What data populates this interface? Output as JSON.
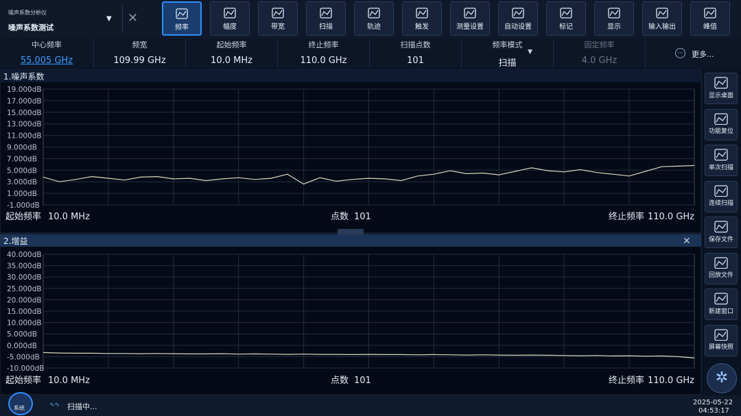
{
  "header": {
    "app": "噪声系数分析仪",
    "mode": "噪声系数测试"
  },
  "toolbar": {
    "active_index": 0,
    "items": [
      "频率",
      "幅度",
      "带宽",
      "扫描",
      "轨迹",
      "触发",
      "测量设置",
      "自动设置",
      "标记",
      "显示",
      "输入输出",
      "峰值"
    ]
  },
  "params": {
    "items": [
      {
        "label": "中心频率",
        "value": "55.005 GHz"
      },
      {
        "label": "频宽",
        "value": "109.99 GHz"
      },
      {
        "label": "起始频率",
        "value": "10.0 MHz"
      },
      {
        "label": "终止频率",
        "value": "110.0 GHz"
      },
      {
        "label": "扫描点数",
        "value": "101"
      },
      {
        "label": "频率模式",
        "value": "扫描"
      },
      {
        "label": "固定频率",
        "value": "4.0 GHz"
      }
    ],
    "more": "更多..."
  },
  "charts": [
    {
      "type": "line",
      "title": "1.噪声系数",
      "color": "#d9d6bf",
      "ylim": [
        -1,
        19
      ],
      "yticks": [
        {
          "value": 19,
          "label": "19.000dB"
        },
        {
          "value": 17,
          "label": "17.000dB"
        },
        {
          "value": 15,
          "label": "15.000dB"
        },
        {
          "value": 13,
          "label": "13.000dB"
        },
        {
          "value": 11,
          "label": "11.000dB"
        },
        {
          "value": 9,
          "label": "9.000dB"
        },
        {
          "value": 7,
          "label": "7.000dB"
        },
        {
          "value": 5,
          "label": "5.000dB"
        },
        {
          "value": 3,
          "label": "3.000dB"
        },
        {
          "value": 1,
          "label": "1.000dB"
        },
        {
          "value": -1,
          "label": "-1.000dB"
        }
      ],
      "values": [
        3.8,
        3.0,
        3.4,
        3.9,
        3.6,
        3.3,
        3.8,
        3.9,
        3.5,
        3.6,
        3.2,
        3.5,
        3.7,
        3.4,
        3.6,
        4.3,
        2.6,
        3.7,
        3.1,
        3.4,
        3.6,
        3.5,
        3.2,
        4.0,
        4.3,
        4.9,
        4.4,
        4.5,
        4.2,
        4.8,
        5.4,
        4.9,
        4.7,
        5.1,
        4.6,
        4.3,
        4.0,
        4.8,
        5.6,
        5.7,
        5.8
      ],
      "footer": {
        "start_label": "起始频率",
        "start": "10.0 MHz",
        "points_label": "点数",
        "points": "101",
        "stop_label": "终止频率",
        "stop": "110.0 GHz"
      }
    },
    {
      "type": "line",
      "title": "2.增益",
      "color": "#d9d6bf",
      "ylim": [
        -10,
        40
      ],
      "yticks": [
        {
          "value": 40,
          "label": "40.000dB"
        },
        {
          "value": 35,
          "label": "35.000dB"
        },
        {
          "value": 30,
          "label": "30.000dB"
        },
        {
          "value": 25,
          "label": "25.000dB"
        },
        {
          "value": 20,
          "label": "20.000dB"
        },
        {
          "value": 15,
          "label": "15.000dB"
        },
        {
          "value": 10,
          "label": "10.000dB"
        },
        {
          "value": 5,
          "label": "5.000dB"
        },
        {
          "value": 0,
          "label": "0.000dB"
        },
        {
          "value": -5,
          "label": "-5.000dB"
        },
        {
          "value": -10,
          "label": "-10.000dB"
        }
      ],
      "values": [
        -3.2,
        -3.4,
        -3.5,
        -3.5,
        -3.6,
        -3.6,
        -3.7,
        -3.6,
        -3.7,
        -3.8,
        -3.8,
        -3.7,
        -3.9,
        -3.8,
        -3.9,
        -4.0,
        -3.9,
        -4.0,
        -4.0,
        -4.1,
        -4.0,
        -4.1,
        -4.1,
        -4.2,
        -4.1,
        -4.2,
        -4.3,
        -4.2,
        -4.3,
        -4.4,
        -4.3,
        -4.4,
        -4.5,
        -4.6,
        -4.5,
        -4.7,
        -4.6,
        -4.8,
        -4.7,
        -5.0,
        -5.6
      ],
      "footer": {
        "start_label": "起始频率",
        "start": "10.0 MHz",
        "points_label": "点数",
        "points": "101",
        "stop_label": "终止频率",
        "stop": "110.0 GHz"
      }
    }
  ],
  "sidebar": [
    "显示桌面",
    "功能复位",
    "单次扫描",
    "连续扫描",
    "保存文件",
    "回放文件",
    "新建窗口",
    "屏幕快照"
  ],
  "status": {
    "system": "系统",
    "state": "扫描中...",
    "date": "2025-05-22",
    "time": "04:53:17"
  }
}
